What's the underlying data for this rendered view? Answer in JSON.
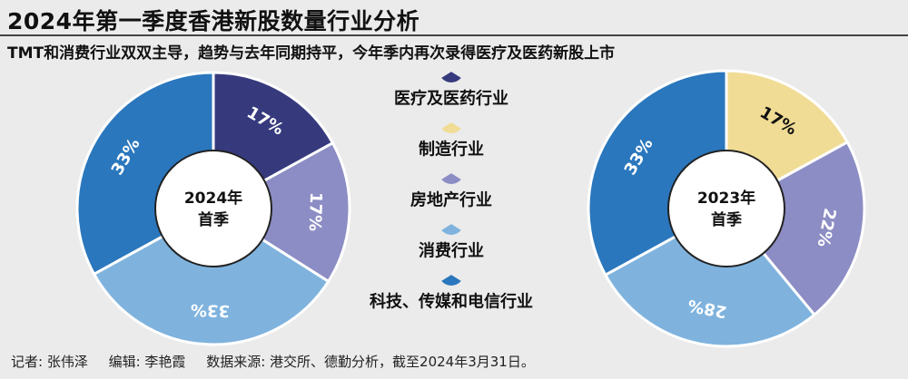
{
  "header": {
    "title": "2024年第一季度香港新股数量行业分析",
    "subtitle": "TMT和消费行业双双主导，趋势与去年同期持平，今年季内再次录得医疗及医药新股上市"
  },
  "footer": {
    "reporter": "记者: 张伟泽",
    "editor": "编辑: 李艳霞",
    "source": "数据来源: 港交所、德勤分析，截至2024年3月31日。"
  },
  "colors": {
    "medical": "#363a7d",
    "manufacturing": "#f1dc95",
    "real_estate": "#8c8dc4",
    "consumer": "#7fb3de",
    "tmt": "#2a77bd"
  },
  "chart_data": [
    {
      "type": "pie",
      "center_label_lines": [
        "2024年",
        "首季"
      ],
      "categories": [
        "医疗及医药行业",
        "房地产行业",
        "消费行业",
        "科技、传媒和电信行业"
      ],
      "values": [
        17,
        17,
        33,
        33
      ],
      "labels": [
        "17%",
        "17%",
        "33%",
        "33%"
      ],
      "color_keys": [
        "medical",
        "real_estate",
        "consumer",
        "tmt"
      ]
    },
    {
      "type": "pie",
      "center_label_lines": [
        "2023年",
        "首季"
      ],
      "categories": [
        "制造行业",
        "房地产行业",
        "消费行业",
        "科技、传媒和电信行业"
      ],
      "values": [
        17,
        22,
        28,
        33
      ],
      "labels": [
        "17%",
        "22%",
        "28%",
        "33%"
      ],
      "color_keys": [
        "manufacturing",
        "real_estate",
        "consumer",
        "tmt"
      ]
    }
  ],
  "legend": [
    {
      "label": "医疗及医药行业",
      "color_key": "medical"
    },
    {
      "label": "制造行业",
      "color_key": "manufacturing"
    },
    {
      "label": "房地产行业",
      "color_key": "real_estate"
    },
    {
      "label": "消费行业",
      "color_key": "consumer"
    },
    {
      "label": "科技、传媒和电信行业",
      "color_key": "tmt"
    }
  ]
}
